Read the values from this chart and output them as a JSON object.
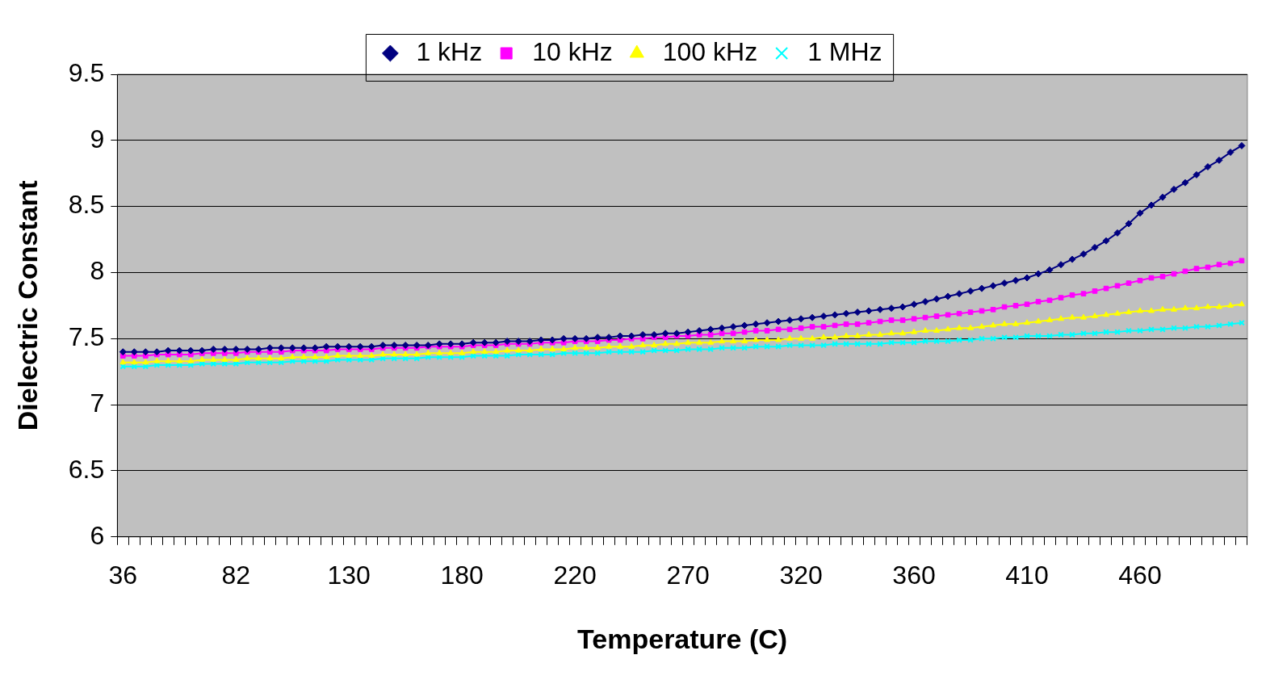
{
  "chart_data": {
    "type": "line",
    "xlabel": "Temperature (C)",
    "ylabel": "Dielectric Constant",
    "categories": [
      "36",
      null,
      null,
      null,
      null,
      null,
      null,
      null,
      null,
      null,
      "82",
      null,
      null,
      null,
      null,
      null,
      null,
      null,
      null,
      null,
      "130",
      null,
      null,
      null,
      null,
      null,
      null,
      null,
      null,
      null,
      "180",
      null,
      null,
      null,
      null,
      null,
      null,
      null,
      null,
      null,
      "220",
      null,
      null,
      null,
      null,
      null,
      null,
      null,
      null,
      null,
      "270",
      null,
      null,
      null,
      null,
      null,
      null,
      null,
      null,
      null,
      "320",
      null,
      null,
      null,
      null,
      null,
      null,
      null,
      null,
      null,
      "360",
      null,
      null,
      null,
      null,
      null,
      null,
      null,
      null,
      null,
      "410",
      null,
      null,
      null,
      null,
      null,
      null,
      null,
      null,
      null,
      "460",
      null,
      null,
      null,
      null,
      null,
      null,
      null,
      null,
      null
    ],
    "series": [
      {
        "name": "1 kHz",
        "color": "#000080",
        "marker": "diamond",
        "values": [
          7.4,
          7.4,
          7.4,
          7.4,
          7.41,
          7.41,
          7.41,
          7.41,
          7.42,
          7.42,
          7.42,
          7.42,
          7.42,
          7.43,
          7.43,
          7.43,
          7.43,
          7.43,
          7.44,
          7.44,
          7.44,
          7.44,
          7.44,
          7.45,
          7.45,
          7.45,
          7.45,
          7.45,
          7.46,
          7.46,
          7.46,
          7.47,
          7.47,
          7.47,
          7.48,
          7.48,
          7.48,
          7.49,
          7.49,
          7.5,
          7.5,
          7.5,
          7.51,
          7.51,
          7.52,
          7.52,
          7.53,
          7.53,
          7.54,
          7.54,
          7.55,
          7.56,
          7.57,
          7.58,
          7.59,
          7.6,
          7.61,
          7.62,
          7.63,
          7.64,
          7.65,
          7.66,
          7.67,
          7.68,
          7.69,
          7.7,
          7.71,
          7.72,
          7.73,
          7.74,
          7.76,
          7.78,
          7.8,
          7.82,
          7.84,
          7.86,
          7.88,
          7.9,
          7.92,
          7.94,
          7.96,
          7.99,
          8.02,
          8.06,
          8.1,
          8.14,
          8.19,
          8.24,
          8.3,
          8.37,
          8.45,
          8.51,
          8.57,
          8.63,
          8.68,
          8.74,
          8.8,
          8.85,
          8.91,
          8.96
        ]
      },
      {
        "name": "10 kHz",
        "color": "#ff00ff",
        "marker": "square",
        "values": [
          7.37,
          7.37,
          7.37,
          7.38,
          7.38,
          7.38,
          7.38,
          7.39,
          7.39,
          7.39,
          7.39,
          7.4,
          7.4,
          7.4,
          7.4,
          7.41,
          7.41,
          7.41,
          7.41,
          7.42,
          7.42,
          7.42,
          7.42,
          7.43,
          7.43,
          7.43,
          7.43,
          7.44,
          7.44,
          7.44,
          7.44,
          7.45,
          7.45,
          7.45,
          7.46,
          7.46,
          7.46,
          7.47,
          7.47,
          7.47,
          7.48,
          7.48,
          7.48,
          7.49,
          7.49,
          7.5,
          7.5,
          7.51,
          7.51,
          7.52,
          7.52,
          7.53,
          7.53,
          7.54,
          7.54,
          7.55,
          7.56,
          7.56,
          7.57,
          7.57,
          7.58,
          7.59,
          7.59,
          7.6,
          7.61,
          7.61,
          7.62,
          7.63,
          7.64,
          7.64,
          7.65,
          7.66,
          7.67,
          7.68,
          7.69,
          7.7,
          7.71,
          7.72,
          7.74,
          7.75,
          7.76,
          7.78,
          7.79,
          7.81,
          7.83,
          7.84,
          7.86,
          7.88,
          7.9,
          7.92,
          7.94,
          7.96,
          7.97,
          7.99,
          8.01,
          8.03,
          8.04,
          8.06,
          8.07,
          8.09
        ]
      },
      {
        "name": "100 kHz",
        "color": "#ffff00",
        "marker": "triangle",
        "values": [
          7.32,
          7.32,
          7.32,
          7.33,
          7.33,
          7.33,
          7.33,
          7.34,
          7.34,
          7.34,
          7.34,
          7.35,
          7.35,
          7.35,
          7.35,
          7.36,
          7.36,
          7.36,
          7.36,
          7.37,
          7.37,
          7.37,
          7.37,
          7.38,
          7.38,
          7.38,
          7.38,
          7.39,
          7.39,
          7.39,
          7.39,
          7.4,
          7.4,
          7.4,
          7.41,
          7.41,
          7.41,
          7.42,
          7.42,
          7.42,
          7.43,
          7.43,
          7.43,
          7.44,
          7.44,
          7.44,
          7.45,
          7.45,
          7.46,
          7.46,
          7.47,
          7.47,
          7.47,
          7.48,
          7.48,
          7.48,
          7.49,
          7.49,
          7.49,
          7.5,
          7.5,
          7.5,
          7.51,
          7.51,
          7.52,
          7.52,
          7.53,
          7.53,
          7.54,
          7.54,
          7.55,
          7.56,
          7.56,
          7.57,
          7.58,
          7.58,
          7.59,
          7.6,
          7.61,
          7.61,
          7.62,
          7.63,
          7.64,
          7.65,
          7.66,
          7.66,
          7.67,
          7.68,
          7.69,
          7.7,
          7.71,
          7.71,
          7.72,
          7.72,
          7.73,
          7.73,
          7.74,
          7.74,
          7.75,
          7.76
        ]
      },
      {
        "name": "1 MHz",
        "color": "#00ffff",
        "marker": "cross",
        "values": [
          7.29,
          7.29,
          7.29,
          7.3,
          7.3,
          7.3,
          7.3,
          7.31,
          7.31,
          7.31,
          7.31,
          7.32,
          7.32,
          7.32,
          7.32,
          7.33,
          7.33,
          7.33,
          7.33,
          7.34,
          7.34,
          7.34,
          7.34,
          7.35,
          7.35,
          7.35,
          7.35,
          7.36,
          7.36,
          7.36,
          7.36,
          7.37,
          7.37,
          7.37,
          7.37,
          7.38,
          7.38,
          7.38,
          7.38,
          7.39,
          7.39,
          7.39,
          7.39,
          7.4,
          7.4,
          7.4,
          7.4,
          7.41,
          7.41,
          7.41,
          7.42,
          7.42,
          7.42,
          7.43,
          7.43,
          7.43,
          7.44,
          7.44,
          7.44,
          7.45,
          7.45,
          7.45,
          7.45,
          7.46,
          7.46,
          7.46,
          7.46,
          7.46,
          7.47,
          7.47,
          7.47,
          7.48,
          7.48,
          7.48,
          7.49,
          7.49,
          7.5,
          7.5,
          7.51,
          7.51,
          7.52,
          7.52,
          7.52,
          7.53,
          7.53,
          7.54,
          7.54,
          7.55,
          7.55,
          7.56,
          7.56,
          7.57,
          7.57,
          7.58,
          7.58,
          7.59,
          7.59,
          7.6,
          7.61,
          7.62
        ]
      }
    ],
    "ylim": [
      6,
      9.5
    ],
    "yticks": [
      6,
      6.5,
      7,
      7.5,
      8,
      8.5,
      9,
      9.5
    ],
    "grid": "y",
    "legend": "top"
  }
}
